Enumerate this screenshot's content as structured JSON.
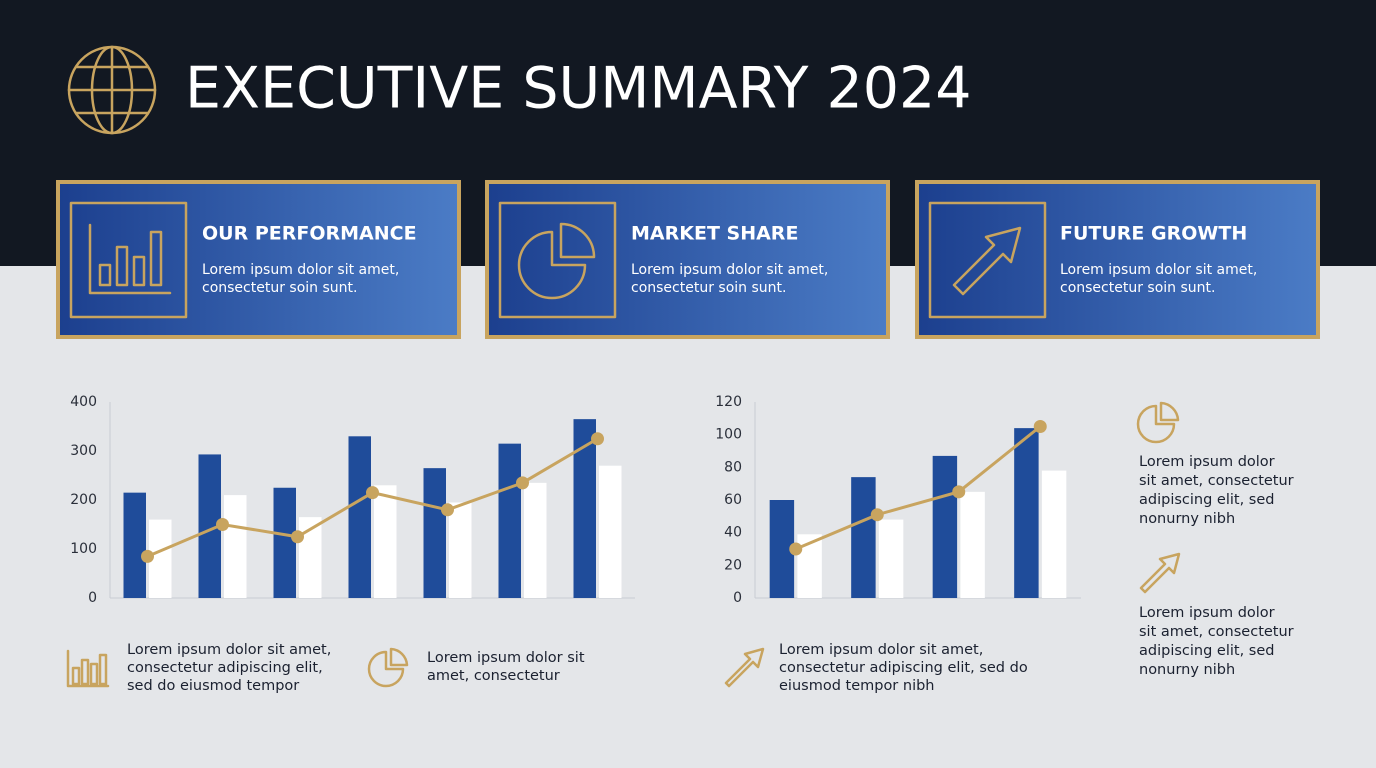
{
  "header": {
    "title": "EXECUTIVE SUMMARY 2024"
  },
  "cards": [
    {
      "title": "OUR PERFORMANCE",
      "lines": [
        "Lorem ipsum dolor sit amet,",
        "consectetur soin sunt."
      ]
    },
    {
      "title": "MARKET SHARE",
      "lines": [
        "Lorem ipsum dolor sit amet,",
        "consectetur soin sunt."
      ]
    },
    {
      "title": "FUTURE GROWTH",
      "lines": [
        "Lorem ipsum dolor sit amet,",
        "consectetur soin sunt."
      ]
    }
  ],
  "chart_data": [
    {
      "type": "combo",
      "categories": [
        null,
        null,
        null,
        null,
        null,
        null,
        null
      ],
      "ylim": [
        0,
        400
      ],
      "yticks": [
        0,
        100,
        200,
        300,
        400
      ],
      "grid": false,
      "series": [
        {
          "type": "bar",
          "color": "#1f4c9a",
          "values": [
            215,
            293,
            225,
            330,
            265,
            315,
            365
          ]
        },
        {
          "type": "bar",
          "color": "#ffffff",
          "values": [
            160,
            210,
            165,
            230,
            195,
            235,
            270
          ]
        },
        {
          "type": "line",
          "color": "#c8a45f",
          "values": [
            85,
            150,
            125,
            215,
            180,
            235,
            325
          ]
        }
      ]
    },
    {
      "type": "combo",
      "categories": [
        null,
        null,
        null,
        null
      ],
      "ylim": [
        0,
        120
      ],
      "yticks": [
        0,
        20,
        40,
        60,
        80,
        100,
        120
      ],
      "grid": false,
      "series": [
        {
          "type": "bar",
          "color": "#1f4c9a",
          "values": [
            60,
            74,
            87,
            104
          ]
        },
        {
          "type": "bar",
          "color": "#ffffff",
          "values": [
            39,
            48,
            65,
            78
          ]
        },
        {
          "type": "line",
          "color": "#c8a45f",
          "values": [
            30,
            51,
            65,
            105
          ]
        }
      ]
    }
  ],
  "notes": [
    {
      "lines": [
        "Lorem ipsum dolor sit amet,",
        "consectetur adipiscing elit,",
        "sed do eiusmod tempor"
      ]
    },
    {
      "lines": [
        "Lorem ipsum dolor sit",
        "amet, consectetur"
      ]
    },
    {
      "lines": [
        "Lorem ipsum dolor sit amet,",
        "consectetur adipiscing elit, sed do",
        "eiusmod tempor nibh"
      ]
    },
    {
      "lines": [
        "Lorem ipsum dolor",
        "sit amet, consectetur",
        "adipiscing elit, sed",
        "nonurny nibh"
      ]
    },
    {
      "lines": [
        "Lorem ipsum dolor",
        "sit amet, consectetur",
        "adipiscing elit, sed",
        "nonurny nibh"
      ]
    }
  ]
}
